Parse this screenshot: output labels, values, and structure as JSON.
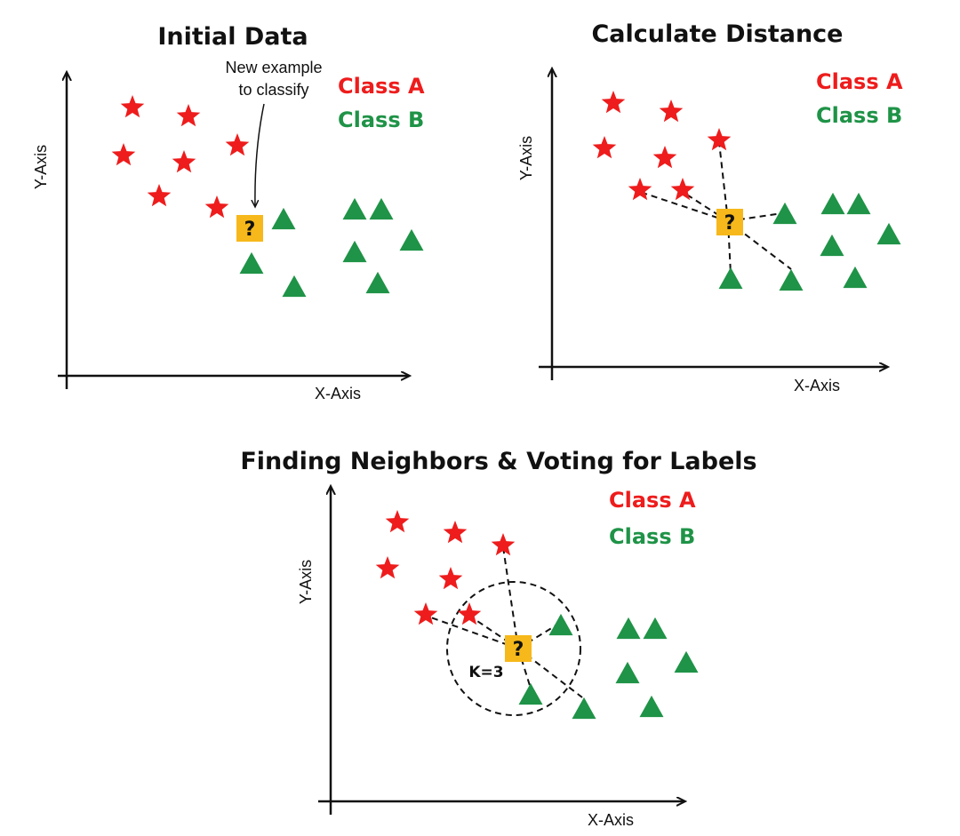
{
  "colors": {
    "class_a": "#ee1c1c",
    "class_b": "#1f9347",
    "query_fill": "#f6b81a",
    "ink": "#111111"
  },
  "legend": {
    "class_a_label": "Class A",
    "class_b_label": "Class B"
  },
  "query_symbol": "?",
  "panels": [
    {
      "id": "initial",
      "title": "Initial Data",
      "x_axis_label": "X-Axis",
      "y_axis_label": "Y-Axis",
      "annotation_lines": [
        "New example",
        "to classify"
      ]
    },
    {
      "id": "distance",
      "title": "Calculate Distance",
      "x_axis_label": "X-Axis",
      "y_axis_label": "Y-Axis"
    },
    {
      "id": "neighbors",
      "title": "Finding Neighbors & Voting for Labels",
      "x_axis_label": "X-Axis",
      "y_axis_label": "Y-Axis",
      "k_label": "K=3"
    }
  ]
}
